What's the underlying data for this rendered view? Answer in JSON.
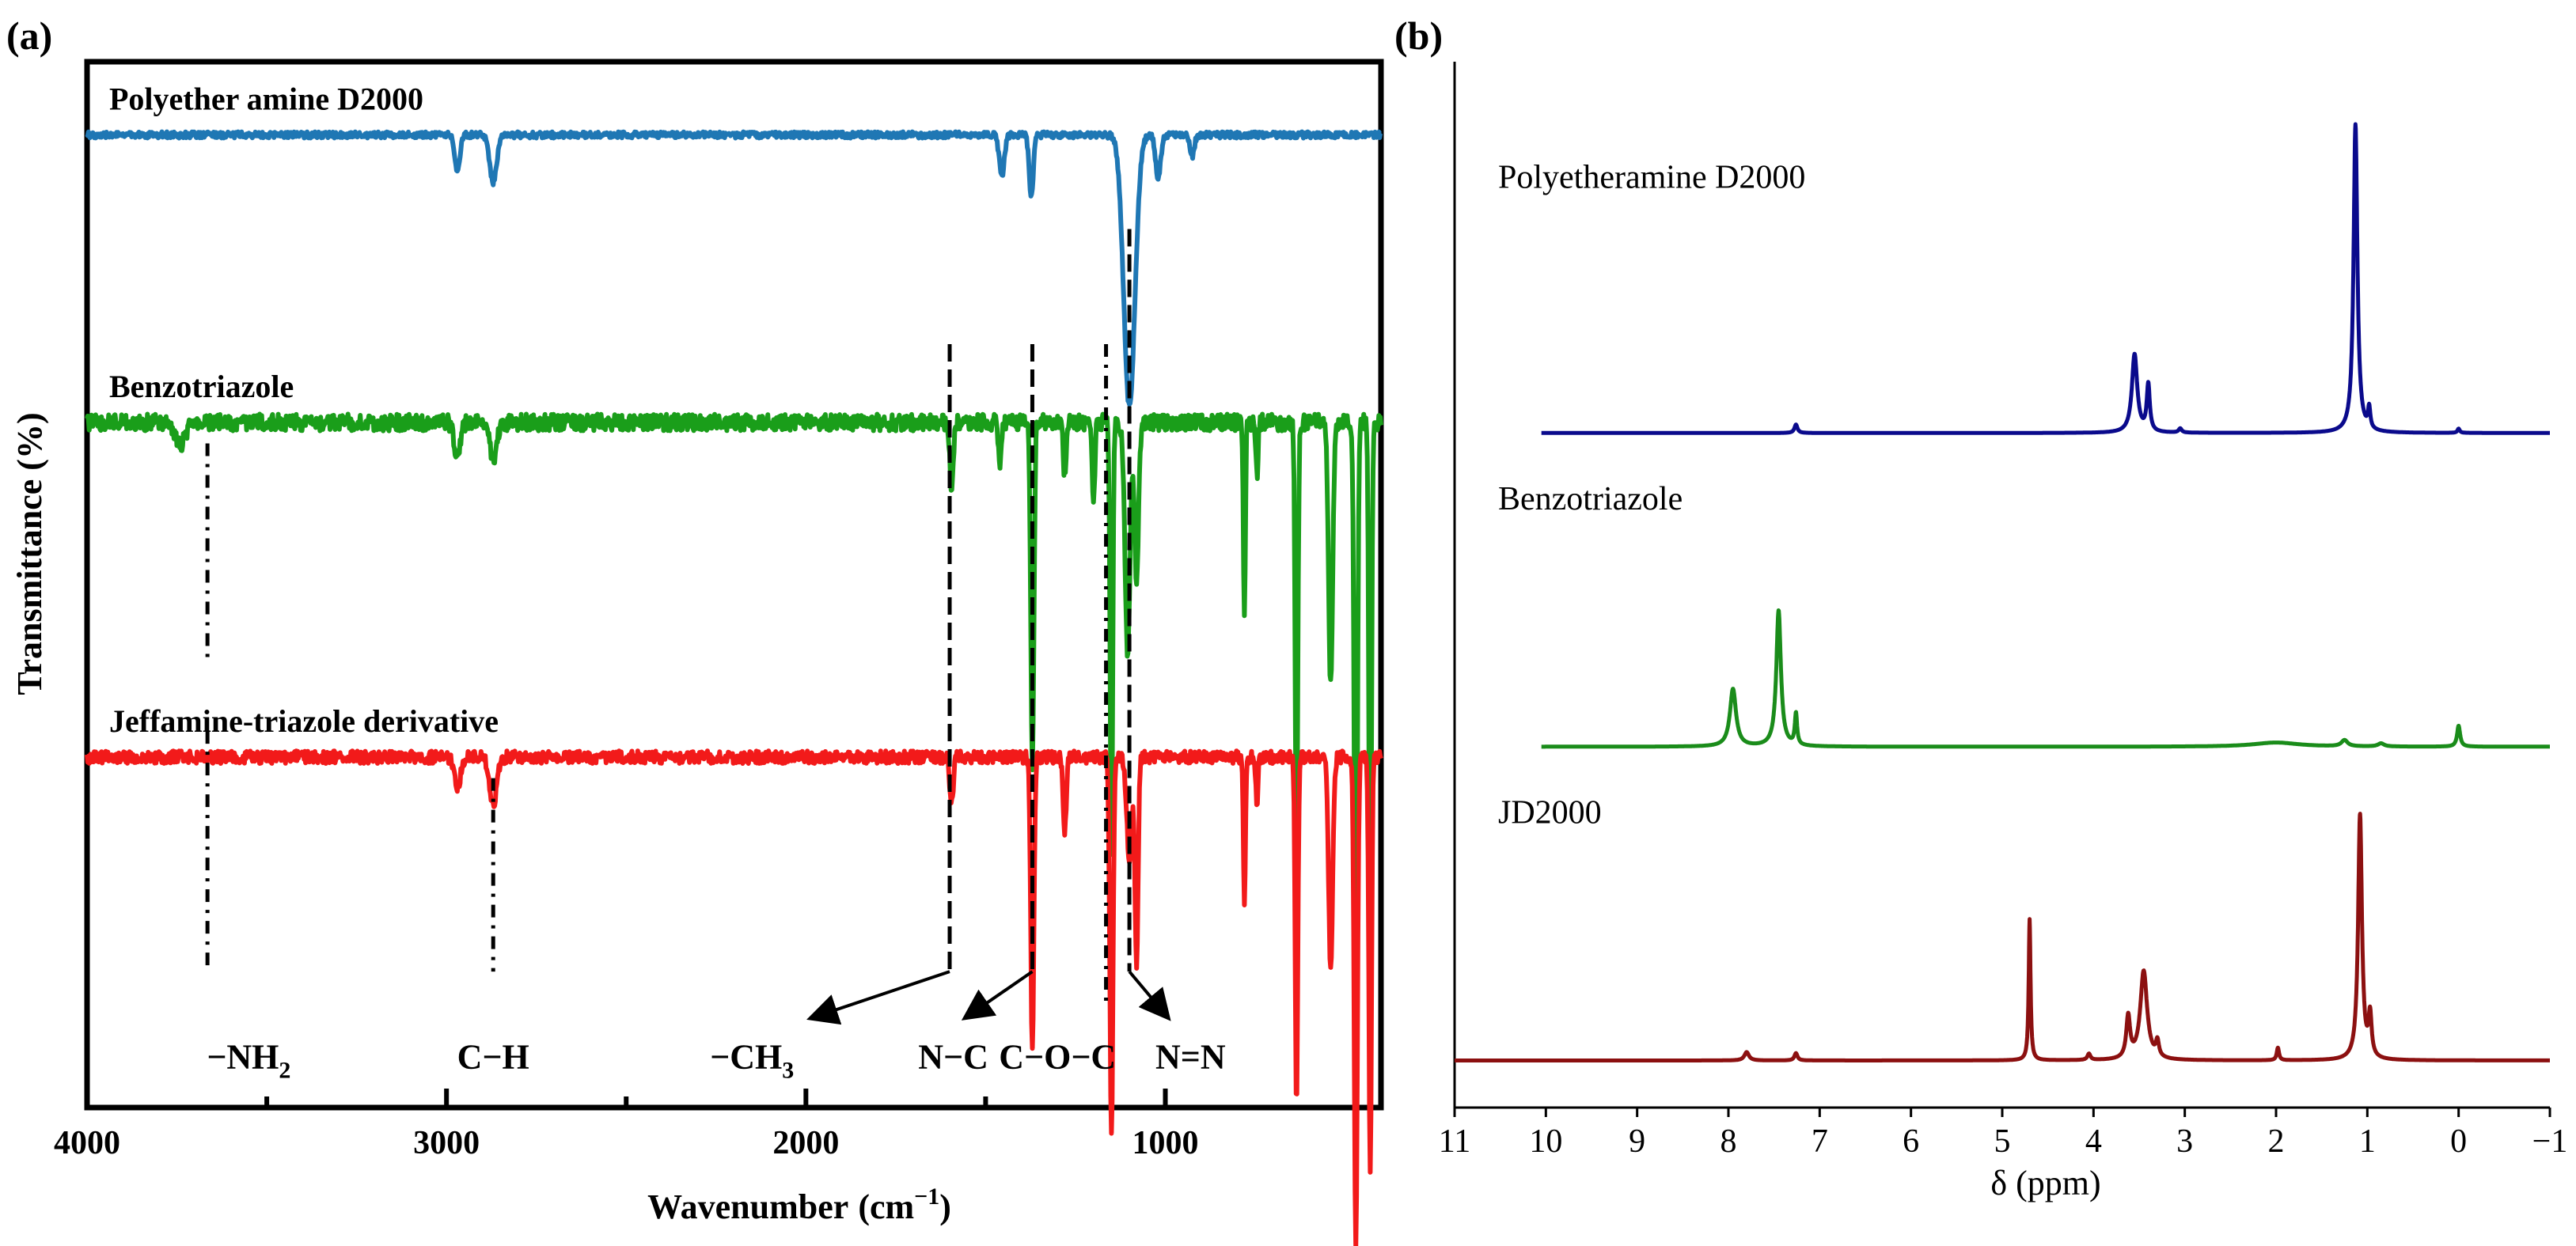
{
  "chart_data": [
    {
      "panel": "(a)",
      "type": "line",
      "title": "",
      "xlabel": "Wavenumber",
      "xlabel_unit_base": "cm",
      "xlabel_unit_exp": "−1",
      "ylabel": "Transmittance (%)",
      "xlim": [
        4000,
        400
      ],
      "x_ticks": [
        4000,
        3000,
        2000,
        1000
      ],
      "x_minor_ticks": [
        3500,
        2500,
        1500
      ],
      "grid": false,
      "series": [
        {
          "name": "Polyether amine D2000",
          "color": "#1f77b4",
          "baseline": 0.93,
          "noise": 0.003,
          "dips": [
            [
              2970,
              0.035,
              10
            ],
            [
              2870,
              0.045,
              14
            ],
            [
              1455,
              0.04,
              10
            ],
            [
              1373,
              0.06,
              8
            ],
            [
              1100,
              0.26,
              22
            ],
            [
              1020,
              0.04,
              10
            ],
            [
              925,
              0.02,
              8
            ]
          ]
        },
        {
          "name": "Benzotriazole",
          "color": "#1a9e1a",
          "baseline": 0.655,
          "noise": 0.008,
          "dips": [
            [
              3740,
              0.02,
              20
            ],
            [
              2970,
              0.03,
              12
            ],
            [
              2870,
              0.035,
              14
            ],
            [
              1595,
              0.06,
              7
            ],
            [
              1460,
              0.04,
              6
            ],
            [
              1370,
              0.33,
              6
            ],
            [
              1280,
              0.05,
              6
            ],
            [
              1200,
              0.08,
              5
            ],
            [
              1150,
              0.42,
              5
            ],
            [
              1105,
              0.22,
              10
            ],
            [
              1080,
              0.15,
              8
            ],
            [
              780,
              0.18,
              4
            ],
            [
              745,
              0.05,
              4
            ],
            [
              635,
              0.42,
              5
            ],
            [
              540,
              0.25,
              8
            ],
            [
              470,
              0.58,
              6
            ],
            [
              430,
              0.52,
              5
            ]
          ]
        },
        {
          "name": "Jeffamine-triazole derivative",
          "color": "#f21a1a",
          "baseline": 0.335,
          "noise": 0.006,
          "dips": [
            [
              2970,
              0.03,
              12
            ],
            [
              2870,
              0.045,
              14
            ],
            [
              1595,
              0.045,
              7
            ],
            [
              1370,
              0.28,
              6
            ],
            [
              1280,
              0.07,
              6
            ],
            [
              1150,
              0.36,
              6
            ],
            [
              1100,
              0.1,
              10
            ],
            [
              1080,
              0.2,
              6
            ],
            [
              780,
              0.14,
              4
            ],
            [
              745,
              0.05,
              4
            ],
            [
              635,
              0.33,
              5
            ],
            [
              540,
              0.2,
              8
            ],
            [
              470,
              0.47,
              6
            ],
            [
              430,
              0.4,
              5
            ]
          ]
        }
      ],
      "annotations": [
        {
          "label": "−NH",
          "sub": "2",
          "x_line": 3665,
          "y_top": 0.635,
          "y_bottom": 0.47,
          "label_x": 3550,
          "arrow": false,
          "gap": [
            0.43,
            0.36
          ],
          "y_line_end": 0.13
        },
        {
          "label": "C−H",
          "sub": "",
          "x_line": 2870,
          "y_top": 0.315,
          "y_bottom": 0.13,
          "label_x": 2870,
          "arrow": false
        },
        {
          "label": "−CH",
          "sub": "3",
          "x_line": 1600,
          "y_top": 0.73,
          "y_bottom": 0.13,
          "label_x": 2150,
          "arrow": true,
          "arrow_to": [
            1990,
            0.085
          ]
        },
        {
          "label": "N−C",
          "sub": "",
          "x_line": 1370,
          "y_top": 0.73,
          "y_bottom": 0.13,
          "label_x": 1590,
          "arrow": true,
          "arrow_to": [
            1560,
            0.085
          ]
        },
        {
          "label": "C−O−C",
          "sub": "",
          "x_line": 1165,
          "y_top": 0.73,
          "y_bottom": 0.1,
          "label_x": 1300,
          "arrow": false
        },
        {
          "label": "N=N",
          "sub": "",
          "x_line": 1100,
          "y_top": 0.84,
          "y_bottom": 0.13,
          "label_x": 930,
          "arrow": true,
          "arrow_to": [
            990,
            0.085
          ]
        }
      ]
    },
    {
      "panel": "(b)",
      "type": "line",
      "title": "",
      "xlabel": "δ (ppm)",
      "ylabel": "",
      "xlim": [
        11,
        -1
      ],
      "x_ticks": [
        11,
        10,
        9,
        8,
        7,
        6,
        5,
        4,
        3,
        2,
        1,
        0,
        -1
      ],
      "x_tick_labels": [
        "11",
        "10",
        "9",
        "8",
        "7",
        "6",
        "5",
        "4",
        "3",
        "2",
        "1",
        "0",
        "−1"
      ],
      "grid": false,
      "series": [
        {
          "name": "Polyetheramine D2000",
          "color": "#0a0a8c",
          "baseline": 0.645,
          "peaks": [
            [
              7.26,
              0.008,
              0.02
            ],
            [
              3.55,
              0.075,
              0.035
            ],
            [
              3.4,
              0.045,
              0.02
            ],
            [
              3.05,
              0.004,
              0.02
            ],
            [
              1.13,
              0.295,
              0.025
            ],
            [
              0.98,
              0.02,
              0.015
            ],
            [
              0.0,
              0.004,
              0.015
            ]
          ]
        },
        {
          "name": "Benzotriazole",
          "color": "#1a8c1a",
          "baseline": 0.345,
          "peaks": [
            [
              7.95,
              0.055,
              0.04
            ],
            [
              7.45,
              0.13,
              0.03
            ],
            [
              7.26,
              0.03,
              0.015
            ],
            [
              2.0,
              0.004,
              0.3
            ],
            [
              1.25,
              0.006,
              0.04
            ],
            [
              0.85,
              0.003,
              0.04
            ],
            [
              0.0,
              0.02,
              0.02
            ]
          ]
        },
        {
          "name": "JD2000",
          "color": "#8c1010",
          "baseline": 0.045,
          "peaks": [
            [
              7.8,
              0.008,
              0.03
            ],
            [
              7.26,
              0.007,
              0.02
            ],
            [
              4.7,
              0.135,
              0.012
            ],
            [
              4.05,
              0.006,
              0.02
            ],
            [
              3.62,
              0.04,
              0.025
            ],
            [
              3.45,
              0.085,
              0.045
            ],
            [
              3.3,
              0.015,
              0.02
            ],
            [
              1.98,
              0.012,
              0.015
            ],
            [
              1.08,
              0.235,
              0.025
            ],
            [
              0.97,
              0.04,
              0.02
            ]
          ]
        }
      ]
    }
  ]
}
